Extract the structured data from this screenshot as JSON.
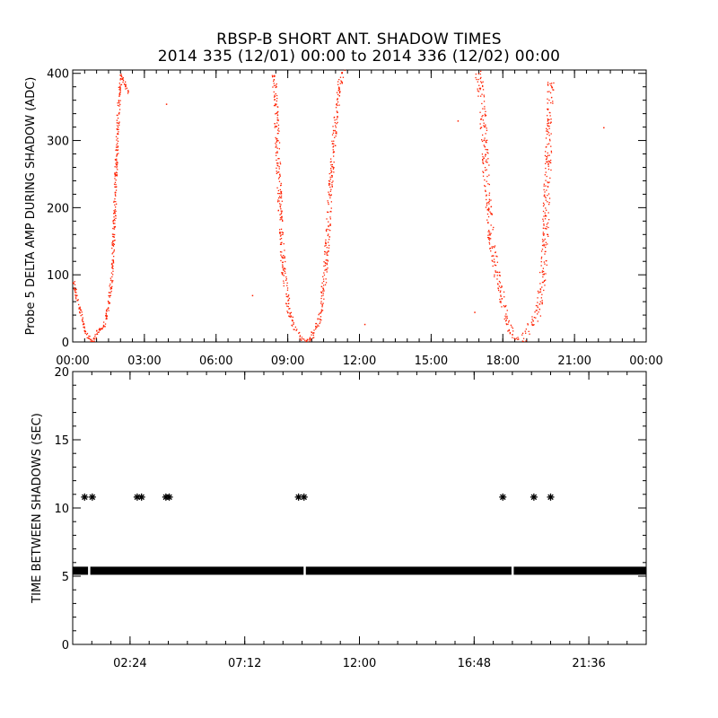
{
  "header": {
    "title_line1": "RBSP-B SHORT ANT. SHADOW TIMES",
    "title_line2": "2014 335 (12/01) 00:00 to 2014 336 (12/02) 00:00"
  },
  "chart_data": [
    {
      "type": "scatter",
      "ylabel": "Probe 5 DELTA AMP DURING SHADOW (ADC)",
      "xlabel": "",
      "xlim_hours": [
        0,
        24
      ],
      "ylim": [
        0,
        405
      ],
      "x_tick_values_hours": [
        0,
        3,
        6,
        9,
        12,
        15,
        18,
        21,
        24
      ],
      "x_tick_labels": [
        "00:00",
        "03:00",
        "06:00",
        "09:00",
        "12:00",
        "15:00",
        "18:00",
        "21:00",
        "00:00"
      ],
      "y_ticks": [
        0,
        100,
        200,
        300,
        400
      ],
      "marker_color": "#ff2000",
      "series": [
        {
          "description": "",
          "x_hours": [
            0.0,
            0.1,
            0.2,
            0.3,
            0.4,
            0.5,
            0.6,
            0.7,
            0.8,
            0.9,
            1.0,
            1.1,
            1.2,
            1.3,
            1.4,
            1.5,
            1.6,
            1.7,
            1.8,
            1.9,
            2.0,
            2.1,
            2.2,
            2.3
          ],
          "y": [
            95,
            75,
            60,
            45,
            30,
            20,
            10,
            5,
            2,
            5,
            15,
            20,
            20,
            25,
            40,
            60,
            90,
            160,
            260,
            350,
            400,
            390,
            380,
            370
          ]
        },
        {
          "description": "",
          "x_hours": [
            8.4,
            8.5,
            8.6,
            8.7,
            8.8,
            8.9,
            9.0,
            9.1,
            9.2,
            9.4,
            9.6,
            9.8,
            9.9,
            10.0,
            10.1,
            10.2,
            10.3,
            10.4,
            10.5,
            10.6,
            10.7,
            10.8,
            10.9,
            11.0,
            11.1,
            11.2,
            11.3
          ],
          "y": [
            400,
            340,
            250,
            170,
            110,
            80,
            55,
            40,
            25,
            12,
            5,
            2,
            5,
            10,
            15,
            25,
            35,
            55,
            90,
            130,
            190,
            250,
            300,
            340,
            375,
            395,
            405
          ],
          "band_width": 8
        },
        {
          "description": "",
          "x_hours": [
            16.9,
            17.0,
            17.1,
            17.2,
            17.3,
            17.4,
            17.5,
            17.6,
            17.7,
            17.8,
            17.9,
            18.0,
            18.2,
            18.4,
            18.6,
            18.8,
            19.0,
            19.2,
            19.4,
            19.5,
            19.6,
            19.7,
            19.8,
            19.9,
            20.0
          ],
          "y": [
            405,
            390,
            360,
            300,
            240,
            190,
            150,
            130,
            110,
            90,
            70,
            55,
            30,
            12,
            5,
            2,
            15,
            30,
            40,
            55,
            80,
            120,
            200,
            300,
            390
          ],
          "band_width": 12
        }
      ],
      "scattered_points": [
        {
          "x_hours": 3.9,
          "y": 355
        },
        {
          "x_hours": 7.5,
          "y": 70
        },
        {
          "x_hours": 12.2,
          "y": 27
        },
        {
          "x_hours": 16.1,
          "y": 330
        },
        {
          "x_hours": 16.8,
          "y": 45
        },
        {
          "x_hours": 22.2,
          "y": 320
        }
      ]
    },
    {
      "type": "scatter",
      "ylabel": "TIME BETWEEN SHADOWS (SEC)",
      "xlabel": "",
      "xlim_hours": [
        0,
        24
      ],
      "ylim": [
        0,
        20
      ],
      "x_tick_values_hours": [
        2.4,
        7.2,
        12.0,
        16.8,
        21.6
      ],
      "x_tick_labels": [
        "02:24",
        "07:12",
        "12:00",
        "16:48",
        "21:36"
      ],
      "y_ticks": [
        0,
        5,
        10,
        15,
        20
      ],
      "marker_color": "#000000",
      "marker": "asterisk",
      "baseline_value": 5.4,
      "baseline_gaps_hours": [
        0.68,
        9.7,
        18.4
      ],
      "points": [
        {
          "x_hours": 0.5,
          "y": 10.8
        },
        {
          "x_hours": 0.82,
          "y": 10.8
        },
        {
          "x_hours": 2.7,
          "y": 10.8
        },
        {
          "x_hours": 2.88,
          "y": 10.8
        },
        {
          "x_hours": 3.9,
          "y": 10.8
        },
        {
          "x_hours": 4.04,
          "y": 10.8
        },
        {
          "x_hours": 9.45,
          "y": 10.8
        },
        {
          "x_hours": 9.68,
          "y": 10.8
        },
        {
          "x_hours": 18.0,
          "y": 10.8
        },
        {
          "x_hours": 19.3,
          "y": 10.8
        },
        {
          "x_hours": 20.0,
          "y": 10.8
        }
      ]
    }
  ]
}
